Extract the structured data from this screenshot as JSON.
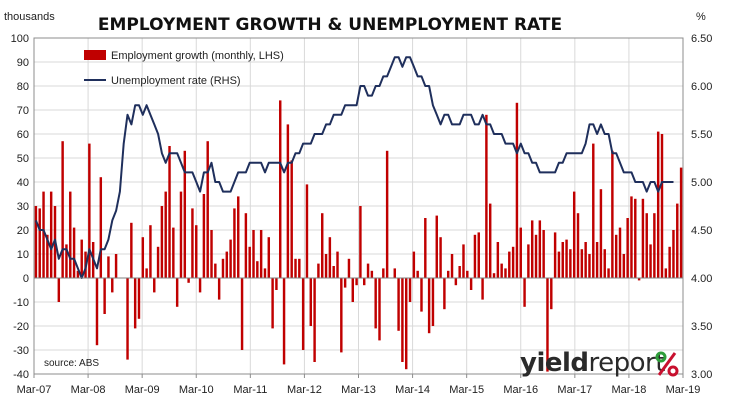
{
  "brand": {
    "word1": "yield",
    "word2": "report",
    "symbol": "%",
    "symbol_colors": [
      "#2e9e3a",
      "#c8102e"
    ]
  },
  "source": "source: ABS",
  "chart_data": {
    "type": "bar+line",
    "title": "EMPLOYMENT GROWTH & UNEMPLOYMENT RATE",
    "y_left_unit": "thousands",
    "y_right_unit": "%",
    "ylim_left": [
      -40,
      100
    ],
    "ylim_right": [
      3.0,
      6.5
    ],
    "y_left_ticks": [
      -40,
      -30,
      -20,
      -10,
      0,
      10,
      20,
      30,
      40,
      50,
      60,
      70,
      80,
      90,
      100
    ],
    "y_right_ticks": [
      "3.00",
      "3.50",
      "4.00",
      "4.50",
      "5.00",
      "5.50",
      "6.00",
      "6.50"
    ],
    "x_tick_labels": [
      "Mar-07",
      "Mar-08",
      "Mar-09",
      "Mar-10",
      "Mar-11",
      "Mar-12",
      "Mar-13",
      "Mar-14",
      "Mar-15",
      "Mar-16",
      "Mar-17",
      "Mar-18",
      "Mar-19"
    ],
    "grid": true,
    "legend_position": "top-left",
    "series": [
      {
        "name": "Employment growth (monthly, LHS)",
        "type": "bar",
        "axis": "left",
        "color": "#c00000",
        "values": [
          30,
          29,
          36,
          18,
          36,
          30,
          -10,
          57,
          14,
          36,
          21,
          3,
          16,
          11,
          56,
          15,
          -28,
          42,
          -15,
          9,
          -6,
          10,
          0,
          0,
          -34,
          23,
          -21,
          -17,
          17,
          4,
          22,
          -6,
          13,
          30,
          36,
          55,
          21,
          -12,
          36,
          53,
          -2,
          29,
          22,
          -6,
          35,
          57,
          20,
          6,
          -9,
          8,
          11,
          16,
          29,
          34,
          -30,
          27,
          13,
          20,
          7,
          20,
          4,
          17,
          -21,
          -5,
          74,
          -36,
          64,
          49,
          8,
          8,
          -30,
          39,
          -20,
          -35,
          6,
          27,
          10,
          17,
          5,
          11,
          -31,
          -4,
          8,
          -10,
          -3,
          30,
          -3,
          6,
          3,
          -21,
          -26,
          4,
          53,
          0,
          4,
          -22,
          -35,
          -38,
          -10,
          11,
          3,
          -14,
          25,
          -23,
          -20,
          26,
          17,
          -13,
          3,
          10,
          -3,
          5,
          14,
          3,
          -5,
          18,
          19,
          -9,
          68,
          31,
          2,
          15,
          6,
          4,
          11,
          13,
          73,
          21,
          -12,
          14,
          24,
          18,
          24,
          20,
          -39,
          -13,
          19,
          11,
          15,
          16,
          12,
          36,
          27,
          12,
          15,
          10,
          56,
          15,
          37,
          12,
          4,
          53,
          18,
          21,
          10,
          25,
          34,
          33,
          -1,
          33,
          27,
          14,
          27,
          61,
          60,
          4,
          13,
          20,
          31,
          46
        ]
      },
      {
        "name": "Unemployment rate (RHS)",
        "type": "line",
        "axis": "right",
        "color": "#1f2f5c",
        "values": [
          4.6,
          4.5,
          4.5,
          4.4,
          4.3,
          4.4,
          4.2,
          4.3,
          4.3,
          4.2,
          4.2,
          4.1,
          4.0,
          4.1,
          4.3,
          4.2,
          4.1,
          4.3,
          4.3,
          4.4,
          4.6,
          4.7,
          4.9,
          5.4,
          5.7,
          5.6,
          5.8,
          5.8,
          5.7,
          5.8,
          5.7,
          5.6,
          5.5,
          5.3,
          5.2,
          5.3,
          5.3,
          5.3,
          5.2,
          5.1,
          5.1,
          5.1,
          5.0,
          4.9,
          5.1,
          5.1,
          5.2,
          5.0,
          5.0,
          4.9,
          4.9,
          4.9,
          5.0,
          5.1,
          5.1,
          5.1,
          5.2,
          5.2,
          5.2,
          5.2,
          5.1,
          5.2,
          5.2,
          5.2,
          5.2,
          5.1,
          5.2,
          5.2,
          5.3,
          5.3,
          5.4,
          5.4,
          5.4,
          5.5,
          5.5,
          5.5,
          5.6,
          5.6,
          5.7,
          5.7,
          5.7,
          5.8,
          5.8,
          5.8,
          5.8,
          6.0,
          6.0,
          5.9,
          5.9,
          6.0,
          6.0,
          6.1,
          6.1,
          6.2,
          6.3,
          6.3,
          6.2,
          6.3,
          6.3,
          6.2,
          6.1,
          6.1,
          6.0,
          6.0,
          5.8,
          5.7,
          5.6,
          5.7,
          5.7,
          5.6,
          5.6,
          5.6,
          5.7,
          5.7,
          5.7,
          5.6,
          5.6,
          5.7,
          5.6,
          5.6,
          5.5,
          5.5,
          5.5,
          5.4,
          5.4,
          5.4,
          5.3,
          5.4,
          5.3,
          5.3,
          5.2,
          5.2,
          5.1,
          5.1,
          5.1,
          5.1,
          5.1,
          5.2,
          5.2,
          5.3,
          5.3,
          5.3,
          5.3,
          5.3,
          5.4,
          5.6,
          5.6,
          5.5,
          5.6,
          5.5,
          5.5,
          5.3,
          5.3,
          5.2,
          5.1,
          5.1,
          5.1,
          5.0,
          5.0,
          5.0,
          4.9,
          5.0,
          5.0,
          4.9,
          5.0,
          5.0,
          5.0,
          5.0
        ]
      }
    ]
  }
}
